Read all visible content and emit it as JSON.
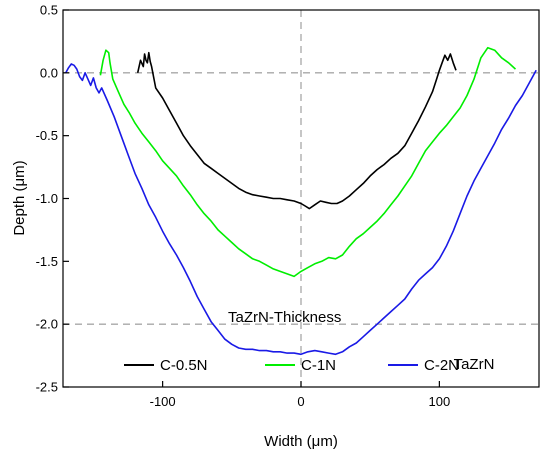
{
  "chart_data": {
    "type": "line",
    "title": "",
    "xlabel": "Width (μm)",
    "ylabel": "Depth (μm)",
    "xlim": [
      -172,
      172
    ],
    "ylim": [
      -2.5,
      0.5
    ],
    "x_ticks": [
      -100,
      0,
      100
    ],
    "x_tick_labels": [
      "-100",
      "0",
      "100"
    ],
    "y_ticks": [
      0.5,
      0.0,
      -0.5,
      -1.0,
      -1.5,
      -2.0,
      -2.5
    ],
    "y_tick_labels": [
      "0.5",
      "0.0",
      "-0.5",
      "-1.0",
      "-1.5",
      "-2.0",
      "-2.5"
    ],
    "grid": false,
    "reference_lines": {
      "x": [
        0
      ],
      "y": [
        0.0,
        -2.0
      ],
      "style": "dashed gray"
    },
    "legend_position": "bottom-left",
    "annotations": [
      "TaZrN-Thickness",
      "TaZrN"
    ],
    "series": [
      {
        "name": "C-0.5N",
        "color": "#000000",
        "x": [
          -118,
          -116,
          -114,
          -113,
          -112,
          -111,
          -110,
          -109,
          -108,
          -105,
          -100,
          -95,
          -90,
          -85,
          -80,
          -75,
          -70,
          -65,
          -60,
          -55,
          -50,
          -45,
          -40,
          -35,
          -30,
          -25,
          -20,
          -15,
          -10,
          -5,
          0,
          3,
          6,
          10,
          14,
          18,
          22,
          26,
          30,
          35,
          40,
          45,
          50,
          55,
          60,
          65,
          70,
          75,
          80,
          85,
          90,
          95,
          98,
          100,
          102,
          104,
          106,
          108,
          110,
          112
        ],
        "y": [
          0.0,
          0.1,
          0.05,
          0.15,
          0.1,
          0.08,
          0.16,
          0.09,
          0.05,
          -0.12,
          -0.2,
          -0.3,
          -0.4,
          -0.5,
          -0.58,
          -0.65,
          -0.72,
          -0.76,
          -0.8,
          -0.84,
          -0.88,
          -0.92,
          -0.95,
          -0.97,
          -0.98,
          -0.99,
          -1.0,
          -1.0,
          -1.01,
          -1.02,
          -1.04,
          -1.06,
          -1.08,
          -1.05,
          -1.02,
          -1.03,
          -1.04,
          -1.04,
          -1.02,
          -0.98,
          -0.93,
          -0.88,
          -0.82,
          -0.77,
          -0.73,
          -0.68,
          -0.64,
          -0.58,
          -0.48,
          -0.38,
          -0.27,
          -0.15,
          -0.05,
          0.02,
          0.08,
          0.14,
          0.1,
          0.15,
          0.08,
          0.02
        ]
      },
      {
        "name": "C-1N",
        "color": "#00ee00",
        "x": [
          -145,
          -143,
          -141,
          -139,
          -138,
          -136,
          -132,
          -128,
          -124,
          -120,
          -115,
          -110,
          -105,
          -100,
          -95,
          -90,
          -85,
          -80,
          -75,
          -70,
          -65,
          -60,
          -55,
          -50,
          -45,
          -40,
          -35,
          -30,
          -25,
          -20,
          -15,
          -10,
          -5,
          0,
          5,
          10,
          15,
          20,
          25,
          30,
          35,
          40,
          45,
          50,
          55,
          60,
          65,
          70,
          75,
          80,
          85,
          90,
          95,
          100,
          105,
          110,
          115,
          120,
          125,
          130,
          135,
          140,
          145,
          150,
          155
        ],
        "y": [
          -0.02,
          0.1,
          0.18,
          0.16,
          0.08,
          -0.05,
          -0.15,
          -0.25,
          -0.32,
          -0.4,
          -0.48,
          -0.55,
          -0.62,
          -0.7,
          -0.76,
          -0.82,
          -0.9,
          -0.97,
          -1.05,
          -1.12,
          -1.18,
          -1.25,
          -1.3,
          -1.35,
          -1.4,
          -1.44,
          -1.48,
          -1.5,
          -1.53,
          -1.56,
          -1.58,
          -1.6,
          -1.62,
          -1.58,
          -1.55,
          -1.52,
          -1.5,
          -1.47,
          -1.48,
          -1.45,
          -1.38,
          -1.32,
          -1.28,
          -1.23,
          -1.18,
          -1.12,
          -1.05,
          -0.98,
          -0.9,
          -0.82,
          -0.72,
          -0.62,
          -0.55,
          -0.48,
          -0.42,
          -0.35,
          -0.28,
          -0.18,
          -0.05,
          0.12,
          0.2,
          0.18,
          0.12,
          0.08,
          0.03
        ]
      },
      {
        "name": "C-2N",
        "color": "#1a1ae6",
        "x": [
          -170,
          -168,
          -166,
          -164,
          -162,
          -160,
          -158,
          -156,
          -154,
          -152,
          -150,
          -148,
          -146,
          -144,
          -140,
          -135,
          -130,
          -125,
          -120,
          -115,
          -110,
          -105,
          -100,
          -95,
          -90,
          -85,
          -80,
          -75,
          -70,
          -65,
          -60,
          -55,
          -50,
          -45,
          -40,
          -35,
          -30,
          -25,
          -20,
          -15,
          -10,
          -5,
          0,
          5,
          10,
          15,
          20,
          25,
          30,
          35,
          40,
          45,
          50,
          55,
          60,
          65,
          70,
          75,
          80,
          85,
          90,
          95,
          100,
          105,
          110,
          115,
          120,
          125,
          130,
          135,
          140,
          145,
          150,
          155,
          160,
          165,
          170
        ],
        "y": [
          0.0,
          0.04,
          0.07,
          0.06,
          0.03,
          -0.03,
          -0.06,
          0.0,
          -0.05,
          -0.1,
          -0.04,
          -0.12,
          -0.16,
          -0.12,
          -0.22,
          -0.35,
          -0.5,
          -0.65,
          -0.8,
          -0.92,
          -1.05,
          -1.15,
          -1.26,
          -1.36,
          -1.45,
          -1.55,
          -1.66,
          -1.78,
          -1.88,
          -1.98,
          -2.05,
          -2.12,
          -2.16,
          -2.19,
          -2.2,
          -2.2,
          -2.21,
          -2.21,
          -2.22,
          -2.22,
          -2.23,
          -2.23,
          -2.24,
          -2.22,
          -2.21,
          -2.22,
          -2.23,
          -2.24,
          -2.22,
          -2.18,
          -2.15,
          -2.1,
          -2.05,
          -2.0,
          -1.95,
          -1.9,
          -1.85,
          -1.8,
          -1.72,
          -1.65,
          -1.6,
          -1.55,
          -1.48,
          -1.38,
          -1.26,
          -1.12,
          -0.98,
          -0.86,
          -0.76,
          -0.66,
          -0.56,
          -0.45,
          -0.36,
          -0.26,
          -0.18,
          -0.08,
          0.02
        ]
      }
    ]
  }
}
